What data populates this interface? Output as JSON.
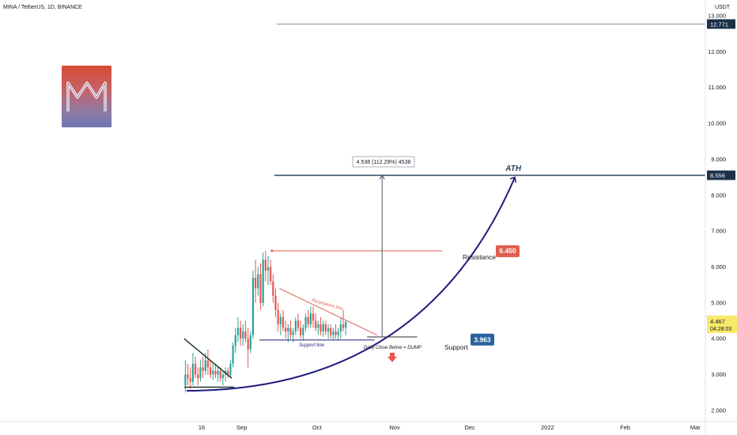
{
  "header": {
    "symbol_line": "MINA / TetherUS, 1D, BINANCE",
    "currency": "USDT"
  },
  "colors": {
    "background": "#ffffff",
    "candle_up": "#26a69a",
    "candle_down": "#ef5350",
    "curve": "#1f1b7e",
    "ath_line": "#2b4560",
    "resistance": "#e05e51",
    "support_label": "#2962a0",
    "current_price_label": "#f7e96a",
    "text": "#131722"
  },
  "icons": {
    "logo": "mina-logo",
    "arrow": "down-arrow-icon"
  },
  "chart_data": {
    "type": "candlestick",
    "y_scale": "linear",
    "ylim": [
      1.8,
      13.0
    ],
    "y_ticks": [
      2,
      3,
      4,
      5,
      6,
      7,
      8,
      9,
      10,
      11,
      12,
      13
    ],
    "y_tick_labels": [
      "2.000",
      "3.000",
      "4.000",
      "5.000",
      "6.000",
      "7.000",
      "8.000",
      "9.000",
      "10.000",
      "11.000",
      "12.000",
      "13.000"
    ],
    "x_range": [
      "2021-08-10",
      "2022-03-05"
    ],
    "x_ticks": [
      {
        "date": "2021-08-16",
        "label": "16"
      },
      {
        "date": "2021-09-01",
        "label": "Sep"
      },
      {
        "date": "2021-10-01",
        "label": "Oct"
      },
      {
        "date": "2021-11-01",
        "label": "Nov"
      },
      {
        "date": "2021-12-01",
        "label": "Dec"
      },
      {
        "date": "2022-01-01",
        "label": "2022"
      },
      {
        "date": "2022-02-01",
        "label": "Feb"
      },
      {
        "date": "2022-03-01",
        "label": "Mar"
      }
    ],
    "candles_start": "2021-08-09",
    "ohlc": [
      [
        2.7,
        3.4,
        2.5,
        3.0
      ],
      [
        3.0,
        3.3,
        2.7,
        2.9
      ],
      [
        2.9,
        3.2,
        2.6,
        2.8
      ],
      [
        2.8,
        3.6,
        2.7,
        3.3
      ],
      [
        3.3,
        3.5,
        2.9,
        3.0
      ],
      [
        3.0,
        3.2,
        2.7,
        2.9
      ],
      [
        2.9,
        3.4,
        2.8,
        3.2
      ],
      [
        3.2,
        3.5,
        2.9,
        3.1
      ],
      [
        3.1,
        3.6,
        3.0,
        3.4
      ],
      [
        3.4,
        3.7,
        3.0,
        3.2
      ],
      [
        3.2,
        3.4,
        2.9,
        3.0
      ],
      [
        3.0,
        3.3,
        2.85,
        3.1
      ],
      [
        3.1,
        3.3,
        2.9,
        3.0
      ],
      [
        3.0,
        3.2,
        2.8,
        3.1
      ],
      [
        3.1,
        3.2,
        2.8,
        2.9
      ],
      [
        2.9,
        3.1,
        2.7,
        3.0
      ],
      [
        3.0,
        3.2,
        2.8,
        3.1
      ],
      [
        3.1,
        3.2,
        2.9,
        3.0
      ],
      [
        3.0,
        3.4,
        2.9,
        3.3
      ],
      [
        3.3,
        3.9,
        3.2,
        3.8
      ],
      [
        3.8,
        4.3,
        3.6,
        4.1
      ],
      [
        4.1,
        4.6,
        3.9,
        4.3
      ],
      [
        4.3,
        4.5,
        3.8,
        4.0
      ],
      [
        4.0,
        4.4,
        3.8,
        4.2
      ],
      [
        4.2,
        4.5,
        3.9,
        4.0
      ],
      [
        4.0,
        4.3,
        3.2,
        3.7
      ],
      [
        3.7,
        4.2,
        3.6,
        4.1
      ],
      [
        4.1,
        5.9,
        4.0,
        5.7
      ],
      [
        5.7,
        6.2,
        5.0,
        5.4
      ],
      [
        5.4,
        6.0,
        5.2,
        5.8
      ],
      [
        5.8,
        6.1,
        4.8,
        5.0
      ],
      [
        5.0,
        6.4,
        4.9,
        6.2
      ],
      [
        6.2,
        6.45,
        5.6,
        5.9
      ],
      [
        5.9,
        6.3,
        5.5,
        6.0
      ],
      [
        6.0,
        6.2,
        5.5,
        5.6
      ],
      [
        5.6,
        5.8,
        5.0,
        5.2
      ],
      [
        5.2,
        5.4,
        4.6,
        4.8
      ],
      [
        4.8,
        5.0,
        4.2,
        4.4
      ],
      [
        4.4,
        4.7,
        4.1,
        4.6
      ],
      [
        4.6,
        4.8,
        4.2,
        4.3
      ],
      [
        4.3,
        4.5,
        4.0,
        4.2
      ],
      [
        4.2,
        4.4,
        3.9,
        4.3
      ],
      [
        4.3,
        4.5,
        4.0,
        4.1
      ],
      [
        4.1,
        4.3,
        3.9,
        4.2
      ],
      [
        4.2,
        4.6,
        4.1,
        4.5
      ],
      [
        4.5,
        4.7,
        4.2,
        4.3
      ],
      [
        4.3,
        4.5,
        4.0,
        4.1
      ],
      [
        4.1,
        4.4,
        3.95,
        4.3
      ],
      [
        4.3,
        4.7,
        4.2,
        4.6
      ],
      [
        4.6,
        4.8,
        4.3,
        4.4
      ],
      [
        4.4,
        4.9,
        4.3,
        4.7
      ],
      [
        4.7,
        4.9,
        4.3,
        4.5
      ],
      [
        4.5,
        4.7,
        4.2,
        4.3
      ],
      [
        4.3,
        4.5,
        4.1,
        4.4
      ],
      [
        4.4,
        4.6,
        4.1,
        4.2
      ],
      [
        4.2,
        4.5,
        4.05,
        4.4
      ],
      [
        4.4,
        4.5,
        4.1,
        4.2
      ],
      [
        4.2,
        4.4,
        4.0,
        4.3
      ],
      [
        4.3,
        4.4,
        4.0,
        4.1
      ],
      [
        4.1,
        4.3,
        3.96,
        4.2
      ],
      [
        4.2,
        4.4,
        4.0,
        4.1
      ],
      [
        4.1,
        4.3,
        3.97,
        4.2
      ],
      [
        4.2,
        4.6,
        4.0,
        4.4
      ],
      [
        4.4,
        4.8,
        4.2,
        4.3
      ],
      [
        4.3,
        4.5,
        4.1,
        4.47
      ]
    ],
    "lines": {
      "ath": 8.556,
      "top": 12.771,
      "resistance": 6.45,
      "support": 3.963
    },
    "price_labels": [
      {
        "key": "top",
        "value": 12.771,
        "text": "12.771"
      },
      {
        "key": "ath",
        "value": 8.556,
        "text": "8.556"
      },
      {
        "key": "current",
        "value": 4.467,
        "text": "4.467",
        "countdown": "04:28:03"
      }
    ],
    "annotations": {
      "ath": "ATH",
      "resistance": "Resistance",
      "resistance_value": "6.450",
      "support": "Support",
      "support_value": "3.963",
      "resistance_line": "Resistance line",
      "support_line": "Support line",
      "daily_close": "Daily Close Below = DUMP",
      "measure": "4.538 (112.29%) 4538"
    },
    "trendlines": {
      "early_resistance": [
        [
          "2021-08-09",
          4.0
        ],
        [
          "2021-08-28",
          2.9
        ]
      ],
      "early_support": [
        [
          "2021-08-09",
          2.65
        ],
        [
          "2021-08-29",
          2.65
        ]
      ],
      "descending_resistance": [
        [
          "2021-09-16",
          5.4
        ],
        [
          "2021-10-25",
          4.1
        ]
      ],
      "support_line": [
        [
          "2021-09-08",
          3.963
        ],
        [
          "2021-10-24",
          3.963
        ]
      ],
      "target_base": [
        [
          "2021-10-21",
          4.05
        ],
        [
          "2021-11-10",
          4.05
        ]
      ],
      "resistance_line": [
        [
          "2021-09-13",
          6.45
        ],
        [
          "2021-11-20",
          6.45
        ]
      ],
      "ath_line": [
        [
          "2021-09-14",
          8.556
        ],
        [
          "2022-03-05",
          8.556
        ]
      ],
      "top_line": [
        [
          "2021-09-15",
          12.771
        ],
        [
          "2022-03-05",
          12.771
        ]
      ],
      "measure_arrow": [
        [
          "2021-10-27",
          4.05
        ],
        [
          "2021-10-27",
          8.556
        ]
      ],
      "curve_start": [
        "2021-08-10",
        2.55
      ],
      "curve_end": [
        "2021-12-19",
        8.5
      ]
    }
  }
}
